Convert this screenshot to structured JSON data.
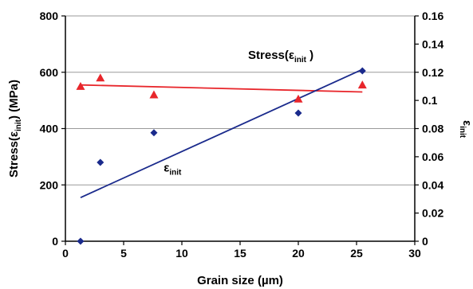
{
  "chart_data": {
    "type": "scatter",
    "x_axis": {
      "title_main": "Grain size (",
      "title_unit": "µm",
      "title_close": ")",
      "range": [
        0,
        30
      ],
      "ticks": [
        0,
        5,
        10,
        15,
        20,
        25,
        30
      ],
      "tick_labels": [
        "0",
        "5",
        "10",
        "15",
        "20",
        "25",
        "30"
      ]
    },
    "y_axis_left": {
      "title_prefix": "Stress(",
      "title_symbol": "ε",
      "title_sub": "init",
      "title_suffix": ") (MPa)",
      "range": [
        0,
        800
      ],
      "ticks": [
        0,
        200,
        400,
        600,
        800
      ],
      "tick_labels": [
        "0",
        "200",
        "400",
        "600",
        "800"
      ]
    },
    "y_axis_right": {
      "title_symbol": "ε",
      "title_sub": "init",
      "range": [
        0,
        0.16
      ],
      "ticks": [
        0,
        0.02,
        0.04,
        0.06,
        0.08,
        0.1,
        0.12,
        0.14,
        0.16
      ],
      "tick_labels": [
        "0",
        "0.02",
        "0.04",
        "0.06",
        "0.08",
        "0.1",
        "0.12",
        "0.14",
        "0.16"
      ]
    },
    "gridlines": {
      "axis": "left-y",
      "values": [
        200,
        400,
        600,
        800
      ]
    },
    "series": [
      {
        "name": "Stress(εinit)",
        "axis": "left",
        "marker": "triangle",
        "color": "#e8262b",
        "x": [
          1.3,
          3.0,
          7.6,
          20.0,
          25.5
        ],
        "y": [
          550,
          580,
          520,
          505,
          555
        ],
        "trendline": {
          "x": [
            1.3,
            25.5
          ],
          "y": [
            555,
            530
          ]
        }
      },
      {
        "name": "εinit",
        "axis": "right",
        "marker": "diamond",
        "color": "#1a2a8c",
        "x": [
          1.3,
          3.0,
          7.6,
          20.0,
          25.5
        ],
        "y": [
          0.0,
          0.056,
          0.077,
          0.091,
          0.121
        ],
        "trendline": {
          "x": [
            1.3,
            25.5
          ],
          "y": [
            0.031,
            0.122
          ]
        }
      }
    ],
    "annotations": [
      {
        "id": "stress",
        "prefix": "Stress(",
        "symbol": "ε",
        "sub": "init",
        "suffix": " )",
        "x": 18.5,
        "y": 648
      },
      {
        "id": "eps",
        "prefix": "",
        "symbol": "ε",
        "sub": "init",
        "suffix": "",
        "x": 9.2,
        "y": 248
      }
    ],
    "colors": {
      "stress": "#e8262b",
      "strain": "#1a2a8c",
      "grid": "#9a9a9a",
      "axis": "#000000"
    }
  }
}
